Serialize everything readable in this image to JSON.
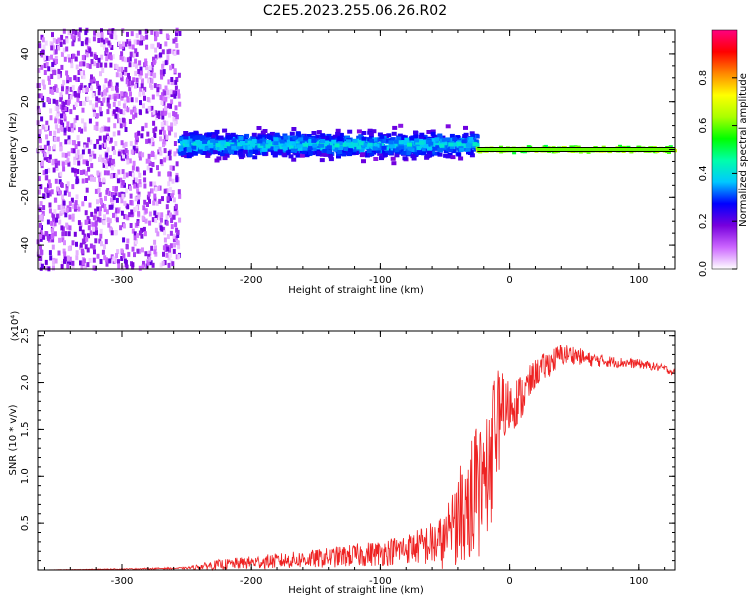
{
  "title": "C2E5.2023.255.06.26.R02",
  "chart_data": [
    {
      "type": "heatmap",
      "xlabel": "Height of straight line (km)",
      "ylabel": "Frequency (Hz)",
      "xlim": [
        -365,
        128
      ],
      "ylim": [
        -50,
        50
      ],
      "x_ticks": [
        -300,
        -200,
        -100,
        0,
        100
      ],
      "x_tick_labels": [
        "-300",
        "-200",
        "-100",
        "0",
        "100"
      ],
      "y_ticks": [
        -40,
        -20,
        0,
        20,
        40
      ],
      "y_tick_labels": [
        "-40",
        "-20",
        "0",
        "20",
        "40"
      ],
      "grid": false,
      "colorbar": {
        "label": "Normalized spectral amplitude",
        "range": [
          0,
          1
        ],
        "ticks": [
          0.0,
          0.2,
          0.4,
          0.6,
          0.8
        ],
        "tick_labels": [
          "0.0",
          "0.2",
          "0.4",
          "0.6",
          "0.8"
        ],
        "colormap": [
          "#ffffff",
          "#cc66ff",
          "#7700dd",
          "#0000ff",
          "#00c8ff",
          "#00ffaa",
          "#00ff00",
          "#aaff00",
          "#ffff00",
          "#ff8800",
          "#ff0000",
          "#ff0080"
        ]
      },
      "regions": [
        {
          "x_range": [
            -365,
            -255
          ],
          "freq_range": [
            -50,
            50
          ],
          "amplitude": [
            0.02,
            0.2
          ],
          "description": "broadband noise"
        },
        {
          "x_range": [
            -255,
            -25
          ],
          "freq_center": 2,
          "freq_halfwidth": [
            5,
            9
          ],
          "amplitude": [
            0.15,
            0.45
          ]
        },
        {
          "x_range": [
            -25,
            128
          ],
          "freq_center": 0,
          "freq_halfwidth": [
            0.6,
            2
          ],
          "amplitude": [
            0.45,
            0.85
          ]
        }
      ]
    },
    {
      "type": "line",
      "xlabel": "Height of straight line (km)",
      "ylabel": "SNR (10 * v/v)",
      "y_multiplier": "(x10⁴)",
      "xlim": [
        -365,
        128
      ],
      "ylim": [
        0,
        2.55
      ],
      "x_ticks": [
        -300,
        -200,
        -100,
        0,
        100
      ],
      "x_tick_labels": [
        "-300",
        "-200",
        "-100",
        "0",
        "100"
      ],
      "y_ticks": [
        0.5,
        1.0,
        1.5,
        2.0,
        2.5
      ],
      "y_tick_labels": [
        "0.5",
        "1.0",
        "1.5",
        "2.0",
        "2.5"
      ],
      "grid": false,
      "series": [
        {
          "color": "#ee2222",
          "x": [
            -365,
            -300,
            -250,
            -230,
            -200,
            -150,
            -100,
            -75,
            -50,
            -40,
            -30,
            -20,
            -15,
            -10,
            0,
            10,
            20,
            30,
            40,
            50,
            60,
            80,
            100,
            120,
            128
          ],
          "y": [
            0.0,
            0.01,
            0.02,
            0.05,
            0.08,
            0.12,
            0.18,
            0.24,
            0.3,
            0.55,
            0.75,
            1.0,
            1.3,
            1.55,
            1.75,
            1.85,
            2.1,
            2.2,
            2.3,
            2.3,
            2.25,
            2.22,
            2.2,
            2.15,
            2.1
          ],
          "noise": [
            0.0,
            0.005,
            0.01,
            0.05,
            0.07,
            0.1,
            0.14,
            0.17,
            0.3,
            0.5,
            0.7,
            0.8,
            0.9,
            0.6,
            0.3,
            0.25,
            0.15,
            0.15,
            0.12,
            0.1,
            0.08,
            0.06,
            0.05,
            0.04,
            0.04
          ]
        }
      ]
    }
  ]
}
